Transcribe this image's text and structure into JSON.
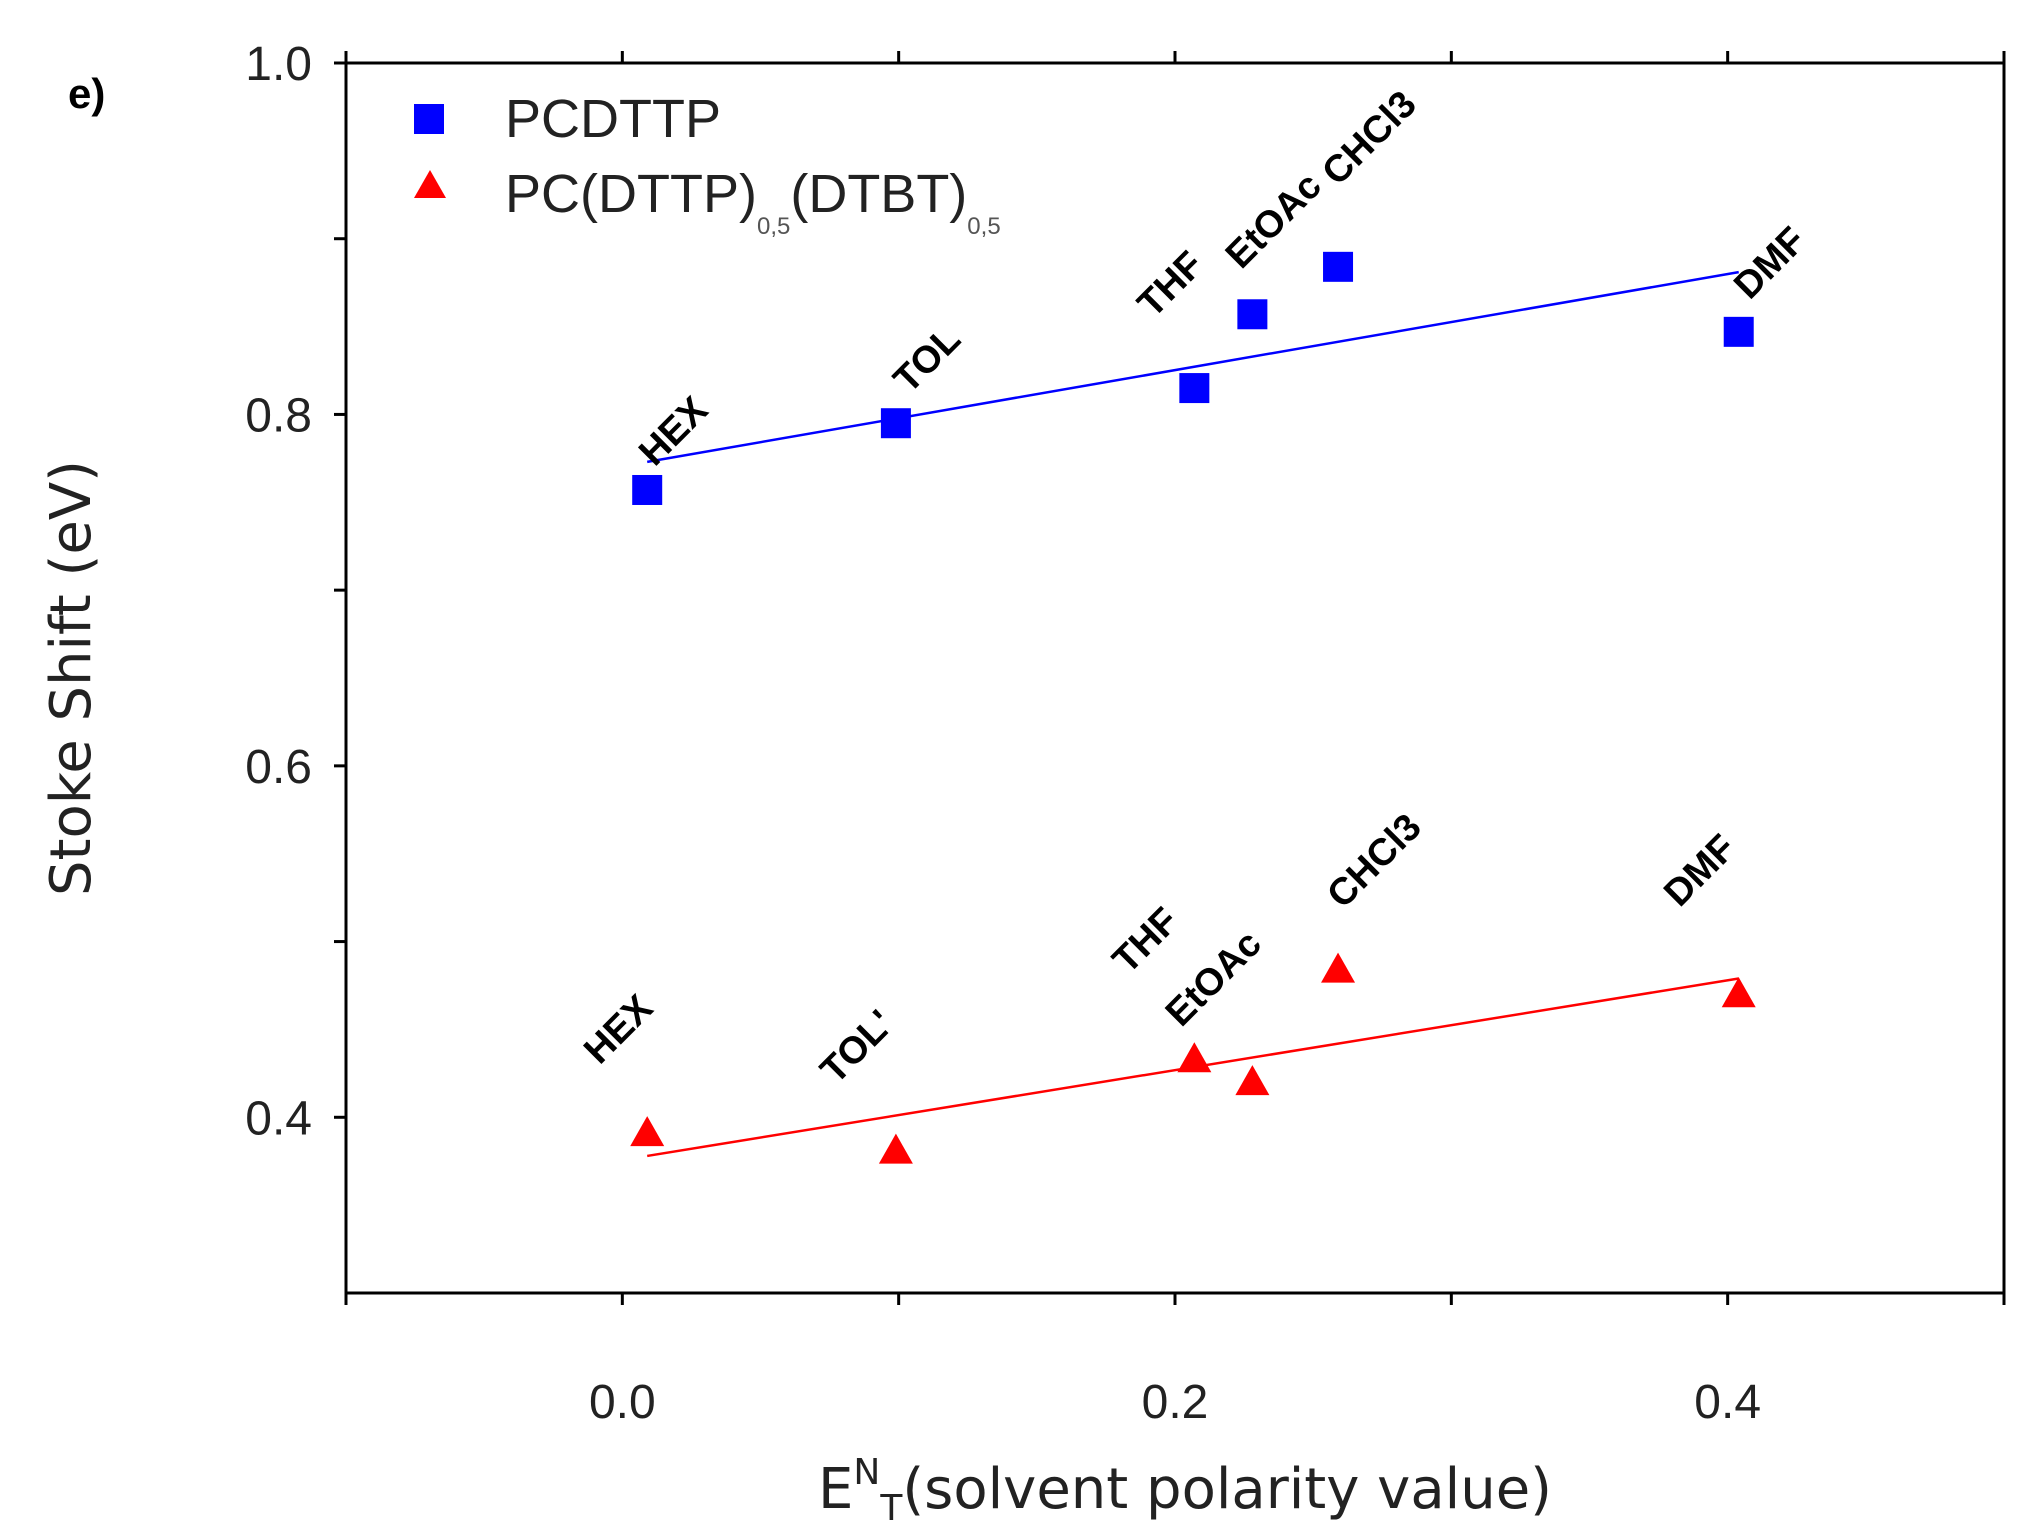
{
  "chart_data": {
    "type": "scatter",
    "panel_label": "e)",
    "xlabel": {
      "main": "E",
      "sup": "N",
      "sub": "T",
      "rest": "(solvent polarity value)"
    },
    "ylabel": "Stoke Shift (eV)",
    "xlim": [
      -0.1,
      0.5
    ],
    "ylim": [
      0.3,
      1.0
    ],
    "xticks": [
      {
        "value": 0.0,
        "label": "0.0"
      },
      {
        "value": 0.2,
        "label": "0.2"
      },
      {
        "value": 0.4,
        "label": "0.4"
      }
    ],
    "xticks_minor": [
      -0.1,
      0.1,
      0.3,
      0.5
    ],
    "yticks": [
      {
        "value": 0.4,
        "label": "0.4"
      },
      {
        "value": 0.6,
        "label": "0.6"
      },
      {
        "value": 0.8,
        "label": "0.8"
      },
      {
        "value": 1.0,
        "label": "1.0"
      }
    ],
    "yticks_minor": [
      0.5,
      0.7,
      0.9
    ],
    "grid": false,
    "legend_position": "top-left",
    "series": [
      {
        "name": "PCDTTP",
        "marker": "square",
        "color": "#0000ff",
        "points": [
          {
            "x": 0.009,
            "y": 0.757,
            "label": "HEX"
          },
          {
            "x": 0.099,
            "y": 0.795,
            "label": "TOL"
          },
          {
            "x": 0.207,
            "y": 0.815,
            "label": "THF"
          },
          {
            "x": 0.228,
            "y": 0.857,
            "label": "EtOAc"
          },
          {
            "x": 0.259,
            "y": 0.884,
            "label": "CHCl3"
          },
          {
            "x": 0.404,
            "y": 0.847,
            "label": "DMF"
          }
        ],
        "fit": {
          "x": [
            0.009,
            0.404
          ],
          "y": [
            0.773,
            0.881
          ]
        }
      },
      {
        "name": "PC(DTTP)",
        "name_parts": [
          {
            "text": "PC(DTTP)"
          },
          {
            "sub": "0,5"
          },
          {
            "text": "(DTBT)"
          },
          {
            "sub": "0,5"
          }
        ],
        "marker": "triangle",
        "color": "#ff0000",
        "points": [
          {
            "x": 0.009,
            "y": 0.391,
            "label": "HEX"
          },
          {
            "x": 0.099,
            "y": 0.381,
            "label": "TOL'"
          },
          {
            "x": 0.207,
            "y": 0.433,
            "label": "THF"
          },
          {
            "x": 0.228,
            "y": 0.42,
            "label": "EtOAc"
          },
          {
            "x": 0.259,
            "y": 0.484,
            "label": "CHCl3"
          },
          {
            "x": 0.404,
            "y": 0.47,
            "label": "DMF"
          }
        ],
        "fit": {
          "x": [
            0.009,
            0.404
          ],
          "y": [
            0.378,
            0.479
          ]
        }
      }
    ]
  }
}
